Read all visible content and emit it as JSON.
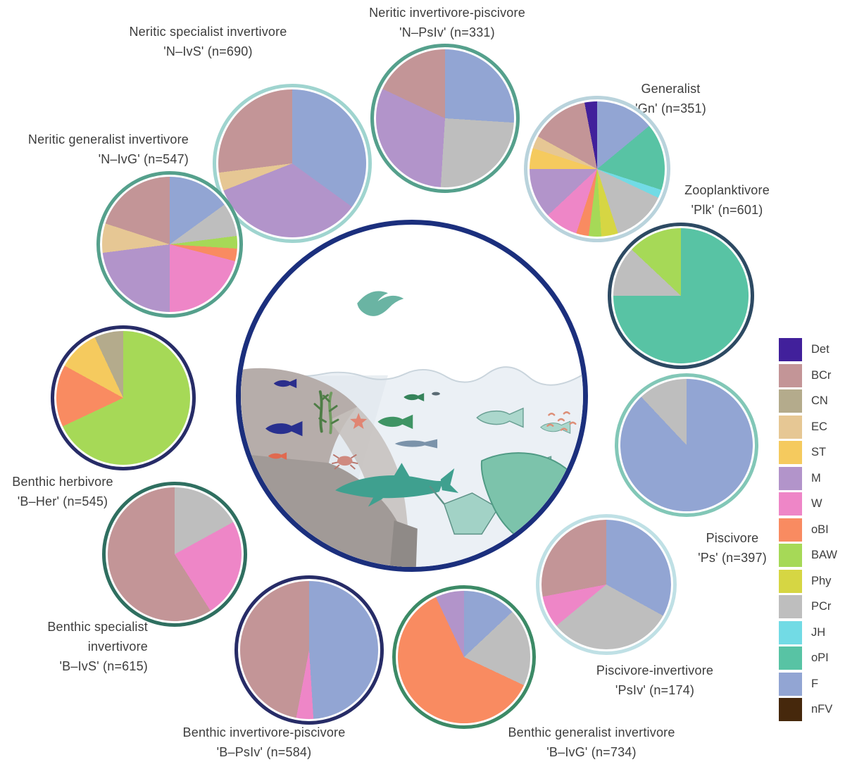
{
  "chart_data": {
    "type": "pie",
    "description_counts_shown": true,
    "legend": {
      "position": "right",
      "items": [
        {
          "key": "Det",
          "color": "#41209b"
        },
        {
          "key": "BCr",
          "color": "#c39597"
        },
        {
          "key": "CN",
          "color": "#b4ab8c"
        },
        {
          "key": "EC",
          "color": "#e6c794"
        },
        {
          "key": "ST",
          "color": "#f5ca5e"
        },
        {
          "key": "M",
          "color": "#b294ca"
        },
        {
          "key": "W",
          "color": "#ee86c7"
        },
        {
          "key": "oBI",
          "color": "#f98b61"
        },
        {
          "key": "BAW",
          "color": "#a6d957"
        },
        {
          "key": "Phy",
          "color": "#d6d643"
        },
        {
          "key": "PCr",
          "color": "#bebebe"
        },
        {
          "key": "JH",
          "color": "#72dbe5"
        },
        {
          "key": "oPI",
          "color": "#58c3a4"
        },
        {
          "key": "F",
          "color": "#92a5d3"
        },
        {
          "key": "nFV",
          "color": "#46280c"
        }
      ]
    },
    "pies": [
      {
        "id": "N-IvS",
        "n": 690,
        "ring": "#9fd4cf",
        "lines": [
          "Neritic specialist invertivore",
          "'N–IvS' (n=690)"
        ],
        "slices": [
          {
            "key": "F",
            "pct": 35
          },
          {
            "key": "M",
            "pct": 34
          },
          {
            "key": "EC",
            "pct": 4
          },
          {
            "key": "BCr",
            "pct": 27
          }
        ]
      },
      {
        "id": "N-PsIv",
        "n": 331,
        "ring": "#55a08c",
        "lines": [
          "Neritic invertivore-piscivore",
          "'N–PsIv' (n=331)"
        ],
        "slices": [
          {
            "key": "F",
            "pct": 26
          },
          {
            "key": "PCr",
            "pct": 25
          },
          {
            "key": "M",
            "pct": 31
          },
          {
            "key": "BCr",
            "pct": 18
          }
        ]
      },
      {
        "id": "Gn",
        "n": 351,
        "ring": "#b9d3dc",
        "lines": [
          "Generalist",
          "'Gn' (n=351)"
        ],
        "slices": [
          {
            "key": "F",
            "pct": 14
          },
          {
            "key": "oPI",
            "pct": 16
          },
          {
            "key": "JH",
            "pct": 2
          },
          {
            "key": "PCr",
            "pct": 13
          },
          {
            "key": "Phy",
            "pct": 4
          },
          {
            "key": "BAW",
            "pct": 3
          },
          {
            "key": "oBI",
            "pct": 3
          },
          {
            "key": "W",
            "pct": 8
          },
          {
            "key": "M",
            "pct": 12
          },
          {
            "key": "ST",
            "pct": 5
          },
          {
            "key": "EC",
            "pct": 3
          },
          {
            "key": "BCr",
            "pct": 14
          },
          {
            "key": "Det",
            "pct": 3
          }
        ]
      },
      {
        "id": "Plk",
        "n": 601,
        "ring": "#2d4a63",
        "lines": [
          "Zooplanktivore",
          "'Plk' (n=601)"
        ],
        "slices": [
          {
            "key": "oPI",
            "pct": 75
          },
          {
            "key": "PCr",
            "pct": 12
          },
          {
            "key": "BAW",
            "pct": 13
          }
        ]
      },
      {
        "id": "Ps",
        "n": 397,
        "ring": "#82c7b7",
        "lines": [
          "Piscivore",
          "'Ps' (n=397)"
        ],
        "slices": [
          {
            "key": "F",
            "pct": 88
          },
          {
            "key": "PCr",
            "pct": 12
          }
        ]
      },
      {
        "id": "PsIv",
        "n": 174,
        "ring": "#bfe0e5",
        "lines": [
          "Piscivore-invertivore",
          "'PsIv' (n=174)"
        ],
        "slices": [
          {
            "key": "F",
            "pct": 33
          },
          {
            "key": "PCr",
            "pct": 31
          },
          {
            "key": "W",
            "pct": 8
          },
          {
            "key": "BCr",
            "pct": 28
          }
        ]
      },
      {
        "id": "B-IvG",
        "n": 734,
        "ring": "#3c8a66",
        "lines": [
          "Benthic generalist invertivore",
          "'B–IvG' (n=734)"
        ],
        "slices": [
          {
            "key": "F",
            "pct": 13
          },
          {
            "key": "PCr",
            "pct": 19
          },
          {
            "key": "oBI",
            "pct": 61
          },
          {
            "key": "M",
            "pct": 7
          }
        ]
      },
      {
        "id": "B-PsIv",
        "n": 584,
        "ring": "#272c67",
        "lines": [
          "Benthic invertivore-piscivore",
          "'B–PsIv' (n=584)"
        ],
        "slices": [
          {
            "key": "F",
            "pct": 49
          },
          {
            "key": "W",
            "pct": 4
          },
          {
            "key": "BCr",
            "pct": 47
          }
        ]
      },
      {
        "id": "B-IvS",
        "n": 615,
        "ring": "#2f6f60",
        "lines": [
          "Benthic specialist",
          "invertivore",
          "'B–IvS' (n=615)"
        ],
        "slices": [
          {
            "key": "PCr",
            "pct": 17
          },
          {
            "key": "W",
            "pct": 24
          },
          {
            "key": "BCr",
            "pct": 59
          }
        ]
      },
      {
        "id": "B-Her",
        "n": 545,
        "ring": "#272c67",
        "lines": [
          "Benthic herbivore",
          "'B–Her' (n=545)"
        ],
        "slices": [
          {
            "key": "BAW",
            "pct": 68
          },
          {
            "key": "oBI",
            "pct": 15
          },
          {
            "key": "ST",
            "pct": 10
          },
          {
            "key": "CN",
            "pct": 7
          }
        ]
      },
      {
        "id": "N-IvG",
        "n": 547,
        "ring": "#55a08c",
        "lines": [
          "Neritic generalist invertivore",
          "'N–IvG' (n=547)"
        ],
        "slices": [
          {
            "key": "F",
            "pct": 15
          },
          {
            "key": "PCr",
            "pct": 8
          },
          {
            "key": "BAW",
            "pct": 3
          },
          {
            "key": "oBI",
            "pct": 3
          },
          {
            "key": "W",
            "pct": 21
          },
          {
            "key": "M",
            "pct": 23
          },
          {
            "key": "EC",
            "pct": 7
          },
          {
            "key": "BCr",
            "pct": 20
          }
        ]
      }
    ]
  }
}
